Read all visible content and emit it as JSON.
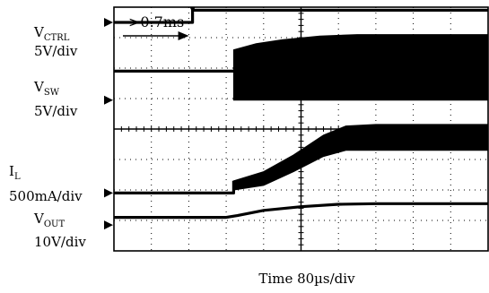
{
  "chart_data": {
    "type": "line",
    "title": "",
    "xlabel": "Time 80µs/div",
    "grid": true,
    "divisions": {
      "x": 10,
      "y": 8
    },
    "x_unit": "div",
    "xlim": [
      0,
      10
    ],
    "ylim": [
      0,
      8
    ],
    "annotation": {
      "text": ">0.7ms",
      "from_div": 0,
      "to_div": 2.1
    },
    "series": [
      {
        "key": "vctrl",
        "name_main": "V",
        "name_sub": "CTRL",
        "scale": "5V/div",
        "marker_div": 7.5,
        "x": [
          0,
          2.1,
          2.1,
          10
        ],
        "y": [
          7.5,
          7.5,
          7.9,
          7.9
        ],
        "band": null
      },
      {
        "key": "vsw",
        "name_main": "V",
        "name_sub": "SW",
        "scale": "5V/div",
        "marker_div": 4.95,
        "x": [
          0,
          3.2,
          10
        ],
        "y": [
          5.9,
          5.9,
          5.9
        ],
        "band": {
          "x": [
            3.2,
            3.8,
            4.5,
            5.5,
            6.5,
            10
          ],
          "low": [
            4.95,
            4.95,
            4.95,
            4.95,
            4.95,
            4.95
          ],
          "high": [
            6.6,
            6.8,
            6.93,
            7.05,
            7.1,
            7.1
          ]
        }
      },
      {
        "key": "il",
        "name_main": "I",
        "name_sub": "L",
        "scale": "500mA/div",
        "marker_div": 1.9,
        "x": [
          0,
          3.2,
          3.2
        ],
        "y": [
          1.9,
          1.9,
          2.3
        ],
        "band": {
          "x": [
            3.2,
            4.0,
            4.8,
            5.6,
            6.2,
            7.0,
            10
          ],
          "low": [
            2.0,
            2.15,
            2.6,
            3.1,
            3.3,
            3.3,
            3.3
          ],
          "high": [
            2.3,
            2.6,
            3.15,
            3.8,
            4.1,
            4.15,
            4.15
          ]
        }
      },
      {
        "key": "vout",
        "name_main": "V",
        "name_sub": "OUT",
        "scale": "10V/div",
        "marker_div": 0.85,
        "x": [
          0,
          3.0,
          3.3,
          4.0,
          5.0,
          6.0,
          7.0,
          10
        ],
        "y": [
          1.1,
          1.1,
          1.16,
          1.33,
          1.45,
          1.53,
          1.55,
          1.55
        ],
        "band": null
      }
    ]
  }
}
